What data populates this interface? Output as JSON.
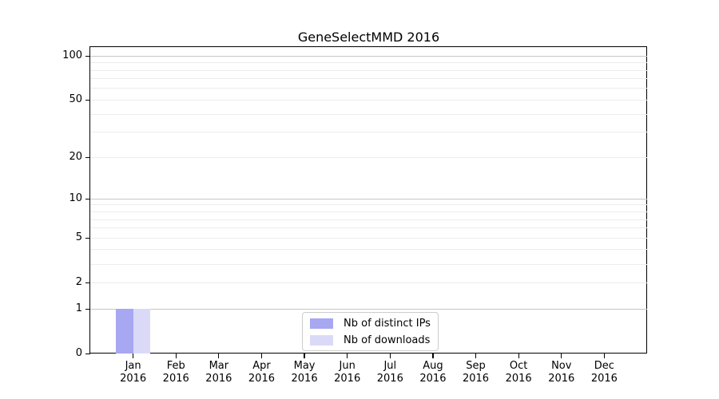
{
  "chart_data": {
    "type": "bar",
    "title": "GeneSelectMMD 2016",
    "categories": [
      {
        "month": "Jan",
        "year": "2016"
      },
      {
        "month": "Feb",
        "year": "2016"
      },
      {
        "month": "Mar",
        "year": "2016"
      },
      {
        "month": "Apr",
        "year": "2016"
      },
      {
        "month": "May",
        "year": "2016"
      },
      {
        "month": "Jun",
        "year": "2016"
      },
      {
        "month": "Jul",
        "year": "2016"
      },
      {
        "month": "Aug",
        "year": "2016"
      },
      {
        "month": "Sep",
        "year": "2016"
      },
      {
        "month": "Oct",
        "year": "2016"
      },
      {
        "month": "Nov",
        "year": "2016"
      },
      {
        "month": "Dec",
        "year": "2016"
      }
    ],
    "series": [
      {
        "name": "Nb of distinct IPs",
        "color": "#a7a7f2",
        "values": [
          1,
          0,
          0,
          0,
          0,
          0,
          0,
          0,
          0,
          0,
          0,
          0
        ]
      },
      {
        "name": "Nb of downloads",
        "color": "#dadaf8",
        "values": [
          1,
          0,
          0,
          0,
          0,
          0,
          0,
          0,
          0,
          0,
          0,
          0
        ]
      }
    ],
    "y_axis": {
      "scale": "log1p",
      "ylim": [
        0,
        115
      ],
      "tick_labels": [
        0,
        1,
        2,
        5,
        10,
        20,
        50,
        100
      ],
      "gridlines_major": [
        1,
        10,
        100
      ],
      "gridlines_minor": [
        2,
        3,
        4,
        5,
        6,
        7,
        8,
        9,
        20,
        30,
        40,
        50,
        60,
        70,
        80,
        90
      ]
    },
    "xlabel": "",
    "ylabel": "",
    "grid": true,
    "legend": {
      "position": "bottom-center"
    }
  }
}
